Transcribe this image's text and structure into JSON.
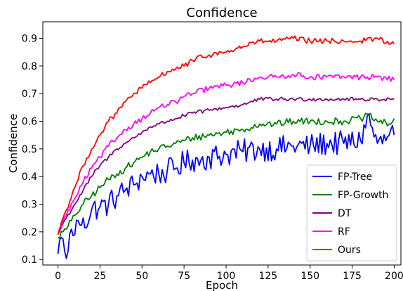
{
  "chart_data": {
    "type": "line",
    "title": "Confidence",
    "xlabel": "Epoch",
    "ylabel": "Confidence",
    "xlim": [
      -9,
      204
    ],
    "ylim": [
      0.08,
      0.96
    ],
    "xticks": [
      0,
      25,
      50,
      75,
      100,
      125,
      150,
      175,
      200
    ],
    "yticks": [
      0.1,
      0.2,
      0.3,
      0.4,
      0.5,
      0.6,
      0.7,
      0.8,
      0.9
    ],
    "grid": false,
    "legend_position": "lower right",
    "x": {
      "start": 0,
      "end": 200,
      "step": 1
    },
    "series": [
      {
        "name": "FP-Tree",
        "color": "#0000ff",
        "anchors": [
          [
            0,
            0.12
          ],
          [
            1,
            0.17
          ],
          [
            2,
            0.18
          ],
          [
            4,
            0.13
          ],
          [
            6,
            0.13
          ],
          [
            8,
            0.21
          ],
          [
            10,
            0.19
          ],
          [
            12,
            0.24
          ],
          [
            15,
            0.25
          ],
          [
            18,
            0.23
          ],
          [
            20,
            0.28
          ],
          [
            25,
            0.29
          ],
          [
            30,
            0.3
          ],
          [
            35,
            0.33
          ],
          [
            40,
            0.35
          ],
          [
            45,
            0.37
          ],
          [
            50,
            0.4
          ],
          [
            55,
            0.41
          ],
          [
            60,
            0.41
          ],
          [
            65,
            0.42
          ],
          [
            70,
            0.43
          ],
          [
            75,
            0.45
          ],
          [
            80,
            0.46
          ],
          [
            85,
            0.46
          ],
          [
            90,
            0.47
          ],
          [
            100,
            0.48
          ],
          [
            110,
            0.49
          ],
          [
            120,
            0.5
          ],
          [
            130,
            0.5
          ],
          [
            140,
            0.51
          ],
          [
            150,
            0.51
          ],
          [
            160,
            0.52
          ],
          [
            170,
            0.52
          ],
          [
            180,
            0.53
          ],
          [
            184,
            0.62
          ],
          [
            190,
            0.52
          ],
          [
            195,
            0.53
          ],
          [
            198,
            0.57
          ],
          [
            200,
            0.55
          ]
        ],
        "noise": 0.045
      },
      {
        "name": "FP-Growth",
        "color": "#008000",
        "anchors": [
          [
            0,
            0.18
          ],
          [
            3,
            0.2
          ],
          [
            5,
            0.21
          ],
          [
            8,
            0.24
          ],
          [
            10,
            0.26
          ],
          [
            15,
            0.3
          ],
          [
            20,
            0.33
          ],
          [
            25,
            0.36
          ],
          [
            30,
            0.39
          ],
          [
            35,
            0.41
          ],
          [
            40,
            0.43
          ],
          [
            45,
            0.45
          ],
          [
            50,
            0.47
          ],
          [
            55,
            0.49
          ],
          [
            60,
            0.5
          ],
          [
            65,
            0.51
          ],
          [
            70,
            0.52
          ],
          [
            75,
            0.53
          ],
          [
            80,
            0.54
          ],
          [
            90,
            0.55
          ],
          [
            100,
            0.56
          ],
          [
            110,
            0.57
          ],
          [
            120,
            0.59
          ],
          [
            130,
            0.59
          ],
          [
            140,
            0.6
          ],
          [
            150,
            0.6
          ],
          [
            160,
            0.6
          ],
          [
            170,
            0.6
          ],
          [
            180,
            0.61
          ],
          [
            185,
            0.62
          ],
          [
            190,
            0.6
          ],
          [
            198,
            0.59
          ],
          [
            200,
            0.61
          ]
        ],
        "noise": 0.013
      },
      {
        "name": "DT",
        "color": "#800080",
        "anchors": [
          [
            0,
            0.19
          ],
          [
            3,
            0.23
          ],
          [
            5,
            0.25
          ],
          [
            10,
            0.3
          ],
          [
            15,
            0.35
          ],
          [
            20,
            0.4
          ],
          [
            25,
            0.44
          ],
          [
            30,
            0.47
          ],
          [
            35,
            0.5
          ],
          [
            40,
            0.52
          ],
          [
            45,
            0.54
          ],
          [
            50,
            0.56
          ],
          [
            55,
            0.58
          ],
          [
            60,
            0.59
          ],
          [
            65,
            0.6
          ],
          [
            70,
            0.61
          ],
          [
            75,
            0.62
          ],
          [
            80,
            0.63
          ],
          [
            90,
            0.64
          ],
          [
            100,
            0.65
          ],
          [
            110,
            0.66
          ],
          [
            120,
            0.68
          ],
          [
            130,
            0.68
          ],
          [
            140,
            0.68
          ],
          [
            150,
            0.68
          ],
          [
            160,
            0.68
          ],
          [
            170,
            0.68
          ],
          [
            180,
            0.68
          ],
          [
            190,
            0.68
          ],
          [
            200,
            0.68
          ]
        ],
        "noise": 0.007
      },
      {
        "name": "RF",
        "color": "#ff00ff",
        "anchors": [
          [
            0,
            0.19
          ],
          [
            3,
            0.24
          ],
          [
            5,
            0.26
          ],
          [
            10,
            0.32
          ],
          [
            15,
            0.38
          ],
          [
            20,
            0.43
          ],
          [
            25,
            0.47
          ],
          [
            30,
            0.51
          ],
          [
            35,
            0.54
          ],
          [
            40,
            0.57
          ],
          [
            45,
            0.59
          ],
          [
            50,
            0.61
          ],
          [
            55,
            0.63
          ],
          [
            60,
            0.65
          ],
          [
            65,
            0.66
          ],
          [
            70,
            0.67
          ],
          [
            75,
            0.69
          ],
          [
            80,
            0.7
          ],
          [
            90,
            0.72
          ],
          [
            100,
            0.73
          ],
          [
            110,
            0.74
          ],
          [
            120,
            0.76
          ],
          [
            130,
            0.76
          ],
          [
            140,
            0.77
          ],
          [
            150,
            0.76
          ],
          [
            160,
            0.76
          ],
          [
            170,
            0.76
          ],
          [
            180,
            0.76
          ],
          [
            190,
            0.76
          ],
          [
            200,
            0.75
          ]
        ],
        "noise": 0.01
      },
      {
        "name": "Ours",
        "color": "#ff0000",
        "anchors": [
          [
            0,
            0.19
          ],
          [
            3,
            0.25
          ],
          [
            5,
            0.28
          ],
          [
            10,
            0.36
          ],
          [
            15,
            0.44
          ],
          [
            20,
            0.5
          ],
          [
            25,
            0.55
          ],
          [
            30,
            0.6
          ],
          [
            35,
            0.63
          ],
          [
            40,
            0.67
          ],
          [
            45,
            0.7
          ],
          [
            50,
            0.72
          ],
          [
            55,
            0.74
          ],
          [
            60,
            0.76
          ],
          [
            65,
            0.78
          ],
          [
            70,
            0.79
          ],
          [
            75,
            0.8
          ],
          [
            80,
            0.82
          ],
          [
            90,
            0.84
          ],
          [
            100,
            0.85
          ],
          [
            110,
            0.87
          ],
          [
            120,
            0.89
          ],
          [
            130,
            0.89
          ],
          [
            140,
            0.9
          ],
          [
            150,
            0.89
          ],
          [
            160,
            0.89
          ],
          [
            170,
            0.89
          ],
          [
            180,
            0.89
          ],
          [
            190,
            0.9
          ],
          [
            198,
            0.88
          ],
          [
            200,
            0.88
          ]
        ],
        "noise": 0.01
      }
    ]
  }
}
